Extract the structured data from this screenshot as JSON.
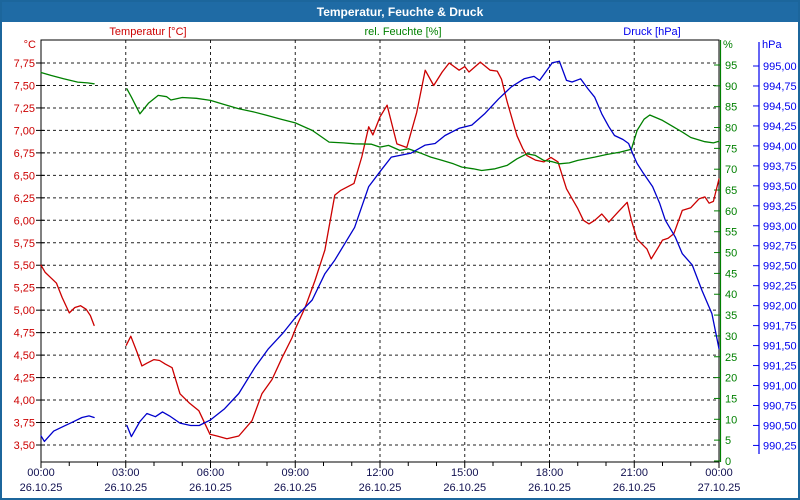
{
  "window": {
    "title": "Temperatur, Feuchte & Druck"
  },
  "colors": {
    "titlebar_bg": "#1f6ba5",
    "frame_border": "#1c669c",
    "temperature": "#cc0000",
    "humidity": "#008000",
    "pressure": "#0000cc",
    "x_label": "#101050",
    "grid": "#222222"
  },
  "legend": [
    {
      "label": "Temperatur [°C]"
    },
    {
      "label": "rel. Feuchte [%]"
    },
    {
      "label": "Druck [hPa]"
    }
  ],
  "units": {
    "temperature": "°C",
    "humidity": "%",
    "pressure": "hPa"
  },
  "y_axis_ticks": {
    "temperature": [
      "7,75",
      "7,50",
      "7,25",
      "7,00",
      "6,75",
      "6,50",
      "6,25",
      "6,00",
      "5,75",
      "5,50",
      "5,25",
      "5,00",
      "4,75",
      "4,50",
      "4,25",
      "4,00",
      "3,75",
      "3,50"
    ],
    "humidity": [
      "95",
      "90",
      "85",
      "80",
      "75",
      "70",
      "65",
      "60",
      "55",
      "50",
      "45",
      "40",
      "35",
      "30",
      "25",
      "20",
      "15",
      "10",
      "5",
      "0"
    ],
    "pressure": [
      "995,00",
      "994,75",
      "994,50",
      "994,25",
      "994,00",
      "993,75",
      "993,50",
      "993,25",
      "993,00",
      "992,75",
      "992,50",
      "992,25",
      "992,00",
      "991,75",
      "991,50",
      "991,25",
      "991,00",
      "990,75",
      "990,50",
      "990,25"
    ]
  },
  "x_axis_ticks": [
    {
      "time": "00:00",
      "date": "26.10.25"
    },
    {
      "time": "03:00",
      "date": "26.10.25"
    },
    {
      "time": "06:00",
      "date": "26.10.25"
    },
    {
      "time": "09:00",
      "date": "26.10.25"
    },
    {
      "time": "12:00",
      "date": "26.10.25"
    },
    {
      "time": "15:00",
      "date": "26.10.25"
    },
    {
      "time": "18:00",
      "date": "26.10.25"
    },
    {
      "time": "21:00",
      "date": "26.10.25"
    },
    {
      "time": "00:00",
      "date": "27.10.25"
    }
  ],
  "chart_data": {
    "type": "line",
    "title": "Temperatur, Feuchte & Druck",
    "x_unit": "hours (00:00 26.10.25 – 00:00 27.10.25)",
    "grid": "dashed, 0.25°C / 5% / 0.25 hPa horizontal steps, 3h vertical steps",
    "legend_position": "top",
    "data_gap_hours": [
      1.9,
      3.0
    ],
    "axes": {
      "temperature": {
        "unit": "°C",
        "tick_max": 7.75,
        "tick_min": 3.5,
        "step": 0.25,
        "side": "left"
      },
      "humidity": {
        "unit": "%",
        "tick_max": 95,
        "tick_min": 0,
        "step": 5,
        "side": "right"
      },
      "pressure": {
        "unit": "hPa",
        "tick_max": 995.0,
        "tick_min": 990.25,
        "step": 0.25,
        "side": "far-right"
      }
    },
    "series": [
      {
        "name": "Temperatur",
        "axis": "temperature",
        "color": "#cc0000",
        "segments": [
          [
            [
              0.0,
              5.5
            ],
            [
              0.15,
              5.42
            ],
            [
              0.35,
              5.36
            ],
            [
              0.55,
              5.3
            ],
            [
              0.75,
              5.14
            ],
            [
              1.0,
              4.97
            ],
            [
              1.2,
              5.03
            ],
            [
              1.4,
              5.05
            ],
            [
              1.6,
              5.01
            ],
            [
              1.75,
              4.94
            ],
            [
              1.88,
              4.83
            ]
          ],
          [
            [
              3.02,
              4.61
            ],
            [
              3.18,
              4.71
            ],
            [
              3.4,
              4.53
            ],
            [
              3.57,
              4.38
            ],
            [
              3.75,
              4.41
            ],
            [
              4.0,
              4.45
            ],
            [
              4.2,
              4.44
            ],
            [
              4.4,
              4.4
            ],
            [
              4.64,
              4.36
            ],
            [
              4.92,
              4.07
            ],
            [
              5.24,
              3.97
            ],
            [
              5.59,
              3.88
            ],
            [
              5.98,
              3.62
            ],
            [
              6.23,
              3.6
            ],
            [
              6.58,
              3.57
            ],
            [
              7.0,
              3.6
            ],
            [
              7.47,
              3.77
            ],
            [
              7.82,
              4.07
            ],
            [
              8.18,
              4.23
            ],
            [
              8.53,
              4.47
            ],
            [
              8.88,
              4.69
            ],
            [
              9.03,
              4.81
            ],
            [
              9.35,
              5.03
            ],
            [
              9.7,
              5.33
            ],
            [
              10.05,
              5.67
            ],
            [
              10.4,
              6.28
            ],
            [
              10.6,
              6.33
            ],
            [
              11.08,
              6.41
            ],
            [
              11.36,
              6.71
            ],
            [
              11.6,
              7.04
            ],
            [
              11.75,
              6.95
            ],
            [
              12.0,
              7.15
            ],
            [
              12.25,
              7.28
            ],
            [
              12.6,
              6.85
            ],
            [
              12.95,
              6.81
            ],
            [
              13.3,
              7.2
            ],
            [
              13.6,
              7.67
            ],
            [
              13.9,
              7.5
            ],
            [
              14.2,
              7.65
            ],
            [
              14.45,
              7.75
            ],
            [
              14.8,
              7.67
            ],
            [
              15.0,
              7.71
            ],
            [
              15.15,
              7.65
            ],
            [
              15.55,
              7.76
            ],
            [
              15.9,
              7.67
            ],
            [
              16.15,
              7.66
            ],
            [
              16.3,
              7.57
            ],
            [
              16.5,
              7.32
            ],
            [
              16.85,
              6.94
            ],
            [
              17.05,
              6.8
            ],
            [
              17.2,
              6.72
            ],
            [
              17.5,
              6.67
            ],
            [
              17.8,
              6.65
            ],
            [
              18.05,
              6.7
            ],
            [
              18.3,
              6.65
            ],
            [
              18.45,
              6.5
            ],
            [
              18.6,
              6.35
            ],
            [
              18.8,
              6.24
            ],
            [
              19.0,
              6.13
            ],
            [
              19.2,
              6.0
            ],
            [
              19.4,
              5.96
            ],
            [
              19.6,
              6.0
            ],
            [
              19.85,
              6.07
            ],
            [
              20.1,
              5.98
            ],
            [
              20.45,
              6.1
            ],
            [
              20.75,
              6.2
            ],
            [
              20.9,
              6.0
            ],
            [
              21.1,
              5.79
            ],
            [
              21.45,
              5.68
            ],
            [
              21.6,
              5.57
            ],
            [
              21.85,
              5.7
            ],
            [
              22.0,
              5.78
            ],
            [
              22.2,
              5.8
            ],
            [
              22.4,
              5.85
            ],
            [
              22.7,
              6.11
            ],
            [
              23.0,
              6.14
            ],
            [
              23.3,
              6.24
            ],
            [
              23.5,
              6.26
            ],
            [
              23.65,
              6.19
            ],
            [
              23.8,
              6.21
            ],
            [
              24.0,
              6.46
            ]
          ]
        ]
      },
      {
        "name": "rel. Feuchte",
        "axis": "humidity",
        "color": "#008000",
        "segments": [
          [
            [
              0.0,
              93.2
            ],
            [
              0.35,
              92.5
            ],
            [
              0.8,
              91.7
            ],
            [
              1.3,
              90.9
            ],
            [
              1.65,
              90.7
            ],
            [
              1.88,
              90.5
            ]
          ],
          [
            [
              3.04,
              89.3
            ],
            [
              3.2,
              87.3
            ],
            [
              3.5,
              83.3
            ],
            [
              3.8,
              85.8
            ],
            [
              4.15,
              87.7
            ],
            [
              4.45,
              87.4
            ],
            [
              4.6,
              86.6
            ],
            [
              5.0,
              87.2
            ],
            [
              5.5,
              87.0
            ],
            [
              6.0,
              86.5
            ],
            [
              6.5,
              85.5
            ],
            [
              7.0,
              84.5
            ],
            [
              7.5,
              83.8
            ],
            [
              8.0,
              82.9
            ],
            [
              8.5,
              82.0
            ],
            [
              9.0,
              81.1
            ],
            [
              9.6,
              79.3
            ],
            [
              10.2,
              76.5
            ],
            [
              10.7,
              76.3
            ],
            [
              11.1,
              76.1
            ],
            [
              11.7,
              76.0
            ],
            [
              12.0,
              75.3
            ],
            [
              12.3,
              75.7
            ],
            [
              12.7,
              74.5
            ],
            [
              13.0,
              74.9
            ],
            [
              13.5,
              73.7
            ],
            [
              13.8,
              72.9
            ],
            [
              14.2,
              72.1
            ],
            [
              14.6,
              71.3
            ],
            [
              14.9,
              70.5
            ],
            [
              15.3,
              70.1
            ],
            [
              15.6,
              69.7
            ],
            [
              16.07,
              70.1
            ],
            [
              16.5,
              70.9
            ],
            [
              16.85,
              72.5
            ],
            [
              17.2,
              73.7
            ],
            [
              17.5,
              73.3
            ],
            [
              17.8,
              72.1
            ],
            [
              18.1,
              71.8
            ],
            [
              18.35,
              71.3
            ],
            [
              18.7,
              71.5
            ],
            [
              19.0,
              72.1
            ],
            [
              19.6,
              72.9
            ],
            [
              20.0,
              73.5
            ],
            [
              20.5,
              74.1
            ],
            [
              20.9,
              74.8
            ],
            [
              21.1,
              79.3
            ],
            [
              21.35,
              82.0
            ],
            [
              21.55,
              83.0
            ],
            [
              22.0,
              81.7
            ],
            [
              22.4,
              80.1
            ],
            [
              22.7,
              78.9
            ],
            [
              23.0,
              77.6
            ],
            [
              23.5,
              76.6
            ],
            [
              23.8,
              76.3
            ],
            [
              24.0,
              76.7
            ]
          ]
        ]
      },
      {
        "name": "Druck",
        "axis": "pressure",
        "color": "#0000cc",
        "segments": [
          [
            [
              0.0,
              990.37
            ],
            [
              0.12,
              990.3
            ],
            [
              0.45,
              990.43
            ],
            [
              0.8,
              990.49
            ],
            [
              1.1,
              990.54
            ],
            [
              1.45,
              990.6
            ],
            [
              1.7,
              990.62
            ],
            [
              1.88,
              990.6
            ]
          ],
          [
            [
              3.04,
              990.5
            ],
            [
              3.2,
              990.36
            ],
            [
              3.5,
              990.55
            ],
            [
              3.75,
              990.65
            ],
            [
              4.05,
              990.61
            ],
            [
              4.3,
              990.67
            ],
            [
              4.55,
              990.62
            ],
            [
              4.92,
              990.53
            ],
            [
              5.3,
              990.5
            ],
            [
              5.6,
              990.5
            ],
            [
              6.0,
              990.57
            ],
            [
              6.5,
              990.71
            ],
            [
              7.0,
              990.9
            ],
            [
              7.58,
              991.23
            ],
            [
              8.05,
              991.46
            ],
            [
              8.55,
              991.65
            ],
            [
              9.0,
              991.85
            ],
            [
              9.6,
              992.07
            ],
            [
              10.05,
              992.4
            ],
            [
              10.4,
              992.57
            ],
            [
              11.1,
              992.98
            ],
            [
              11.6,
              993.49
            ],
            [
              12.05,
              993.7
            ],
            [
              12.4,
              993.86
            ],
            [
              13.1,
              993.91
            ],
            [
              13.6,
              994.01
            ],
            [
              13.95,
              994.03
            ],
            [
              14.3,
              994.13
            ],
            [
              14.8,
              994.22
            ],
            [
              15.25,
              994.26
            ],
            [
              15.7,
              994.4
            ],
            [
              16.2,
              994.59
            ],
            [
              16.65,
              994.74
            ],
            [
              17.1,
              994.84
            ],
            [
              17.45,
              994.87
            ],
            [
              17.65,
              994.82
            ],
            [
              18.1,
              995.04
            ],
            [
              18.35,
              995.06
            ],
            [
              18.6,
              994.82
            ],
            [
              18.8,
              994.8
            ],
            [
              19.1,
              994.84
            ],
            [
              19.35,
              994.72
            ],
            [
              19.6,
              994.61
            ],
            [
              19.85,
              994.4
            ],
            [
              20.1,
              994.24
            ],
            [
              20.3,
              994.13
            ],
            [
              20.6,
              994.08
            ],
            [
              20.8,
              994.03
            ],
            [
              20.95,
              993.9
            ],
            [
              21.1,
              993.78
            ],
            [
              21.3,
              993.67
            ],
            [
              21.65,
              993.49
            ],
            [
              21.9,
              993.28
            ],
            [
              22.1,
              993.07
            ],
            [
              22.45,
              992.86
            ],
            [
              22.7,
              992.65
            ],
            [
              23.05,
              992.51
            ],
            [
              23.4,
              992.19
            ],
            [
              23.75,
              991.9
            ],
            [
              24.0,
              991.46
            ]
          ]
        ]
      }
    ]
  }
}
